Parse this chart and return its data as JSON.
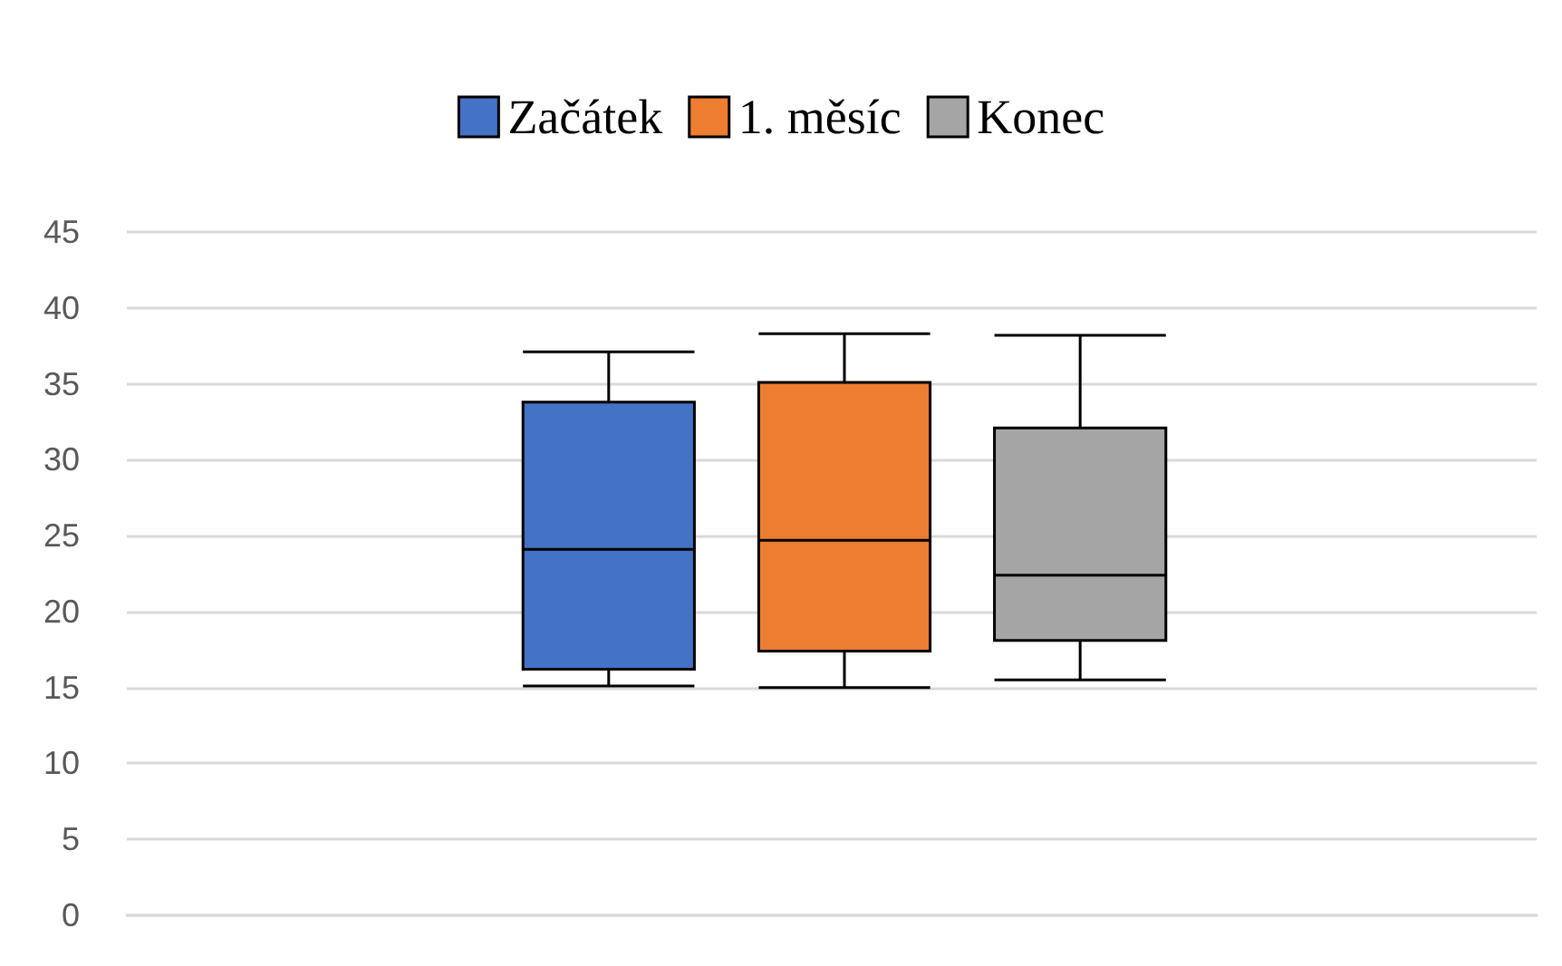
{
  "chart_data": {
    "type": "box",
    "categories": [
      null
    ],
    "series": [
      {
        "name": "Začátek",
        "color": "#4472c4",
        "boxes": [
          {
            "low": 15.1,
            "q1": 16.2,
            "median": 24.1,
            "q3": 33.8,
            "high": 37.1
          }
        ]
      },
      {
        "name": "1. měsíc",
        "color": "#ed7d31",
        "boxes": [
          {
            "low": 15.0,
            "q1": 17.4,
            "median": 24.7,
            "q3": 35.1,
            "high": 38.3
          }
        ]
      },
      {
        "name": "Konec",
        "color": "#a5a5a5",
        "boxes": [
          {
            "low": 15.5,
            "q1": 18.1,
            "median": 22.4,
            "q3": 32.1,
            "high": 38.2
          }
        ]
      }
    ],
    "ylim": [
      0,
      45
    ],
    "yticks": [
      0,
      5,
      10,
      15,
      20,
      25,
      30,
      35,
      40,
      45
    ],
    "grid": "y",
    "legend": "top"
  }
}
